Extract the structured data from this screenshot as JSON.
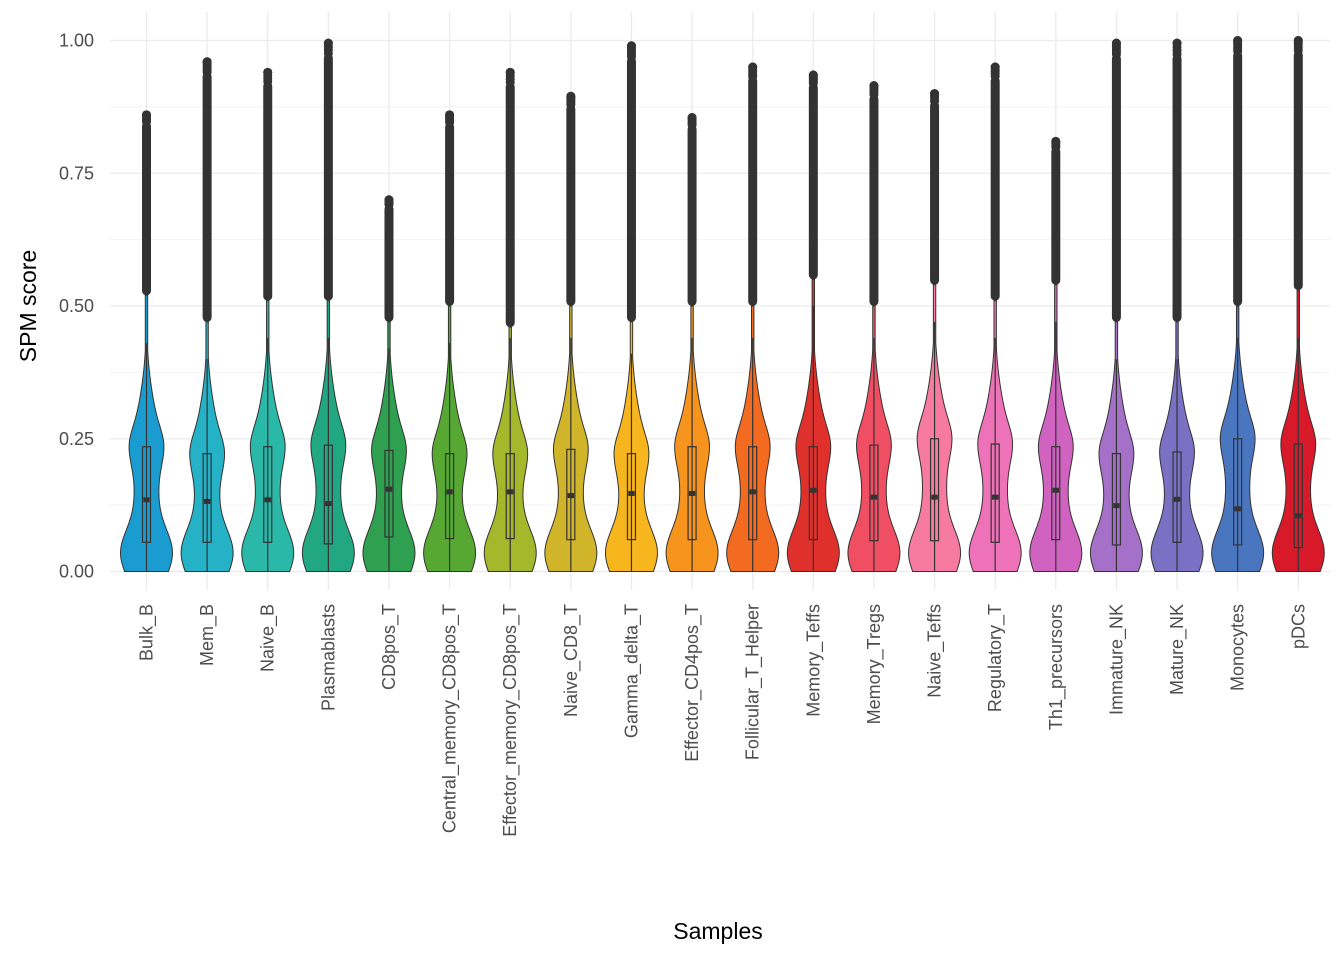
{
  "chart_data": {
    "type": "violin",
    "title": "",
    "xlabel": "Samples",
    "ylabel": "SPM score",
    "ylim": [
      -0.025,
      1.04
    ],
    "y_ticks": [
      0.0,
      0.25,
      0.5,
      0.75,
      1.0
    ],
    "y_tick_labels": [
      "0.00",
      "0.25",
      "0.50",
      "0.75",
      "1.00"
    ],
    "grid": true,
    "legend": "none",
    "categories": [
      "Bulk_B",
      "Mem_B",
      "Naive_B",
      "Plasmablasts",
      "CD8pos_T",
      "Central_memory_CD8pos_T",
      "Effector_memory_CD8pos_T",
      "Naive_CD8_T",
      "Gamma_delta_T",
      "Effector_CD4pos_T",
      "Follicular_T_Helper",
      "Memory_Teffs",
      "Memory_Tregs",
      "Naive_Teffs",
      "Regulatory_T",
      "Th1_precursors",
      "Immature_NK",
      "Mature_NK",
      "Monocytes",
      "pDCs"
    ],
    "colors": [
      "#1B9CD0",
      "#25B1C6",
      "#2AB8A8",
      "#21A882",
      "#2EA050",
      "#56A832",
      "#A3B82B",
      "#D0B42A",
      "#F7B51E",
      "#F7941D",
      "#F26B21",
      "#E0302B",
      "#F04E63",
      "#F77BA0",
      "#EE72B8",
      "#D163C0",
      "#A570C8",
      "#7C70C4",
      "#4A76C0",
      "#D7192A"
    ],
    "series": [
      {
        "name": "Bulk_B",
        "median": 0.135,
        "q1": 0.055,
        "q3": 0.235,
        "whisker_high": 0.43,
        "max": 0.86,
        "outlier_start": 0.52
      },
      {
        "name": "Mem_B",
        "median": 0.132,
        "q1": 0.055,
        "q3": 0.222,
        "whisker_high": 0.4,
        "max": 0.96,
        "outlier_start": 0.47
      },
      {
        "name": "Naive_B",
        "median": 0.135,
        "q1": 0.055,
        "q3": 0.235,
        "whisker_high": 0.44,
        "max": 0.94,
        "outlier_start": 0.51
      },
      {
        "name": "Plasmablasts",
        "median": 0.128,
        "q1": 0.052,
        "q3": 0.238,
        "whisker_high": 0.44,
        "max": 0.995,
        "outlier_start": 0.51
      },
      {
        "name": "CD8pos_T",
        "median": 0.155,
        "q1": 0.065,
        "q3": 0.228,
        "whisker_high": 0.42,
        "max": 0.7,
        "outlier_start": 0.47
      },
      {
        "name": "Central_memory_CD8pos_T",
        "median": 0.15,
        "q1": 0.062,
        "q3": 0.222,
        "whisker_high": 0.43,
        "max": 0.86,
        "outlier_start": 0.5
      },
      {
        "name": "Effector_memory_CD8pos_T",
        "median": 0.15,
        "q1": 0.062,
        "q3": 0.222,
        "whisker_high": 0.44,
        "max": 0.94,
        "outlier_start": 0.46
      },
      {
        "name": "Naive_CD8_T",
        "median": 0.143,
        "q1": 0.06,
        "q3": 0.23,
        "whisker_high": 0.44,
        "max": 0.895,
        "outlier_start": 0.5
      },
      {
        "name": "Gamma_delta_T",
        "median": 0.147,
        "q1": 0.06,
        "q3": 0.222,
        "whisker_high": 0.41,
        "max": 0.99,
        "outlier_start": 0.47
      },
      {
        "name": "Effector_CD4pos_T",
        "median": 0.147,
        "q1": 0.06,
        "q3": 0.235,
        "whisker_high": 0.44,
        "max": 0.855,
        "outlier_start": 0.5
      },
      {
        "name": "Follicular_T_Helper",
        "median": 0.15,
        "q1": 0.06,
        "q3": 0.235,
        "whisker_high": 0.44,
        "max": 0.95,
        "outlier_start": 0.5
      },
      {
        "name": "Memory_Teffs",
        "median": 0.153,
        "q1": 0.06,
        "q3": 0.235,
        "whisker_high": 0.5,
        "max": 0.935,
        "outlier_start": 0.55
      },
      {
        "name": "Memory_Tregs",
        "median": 0.14,
        "q1": 0.058,
        "q3": 0.238,
        "whisker_high": 0.44,
        "max": 0.915,
        "outlier_start": 0.5
      },
      {
        "name": "Naive_Teffs",
        "median": 0.14,
        "q1": 0.058,
        "q3": 0.25,
        "whisker_high": 0.47,
        "max": 0.9,
        "outlier_start": 0.54
      },
      {
        "name": "Regulatory_T",
        "median": 0.14,
        "q1": 0.055,
        "q3": 0.24,
        "whisker_high": 0.44,
        "max": 0.95,
        "outlier_start": 0.51
      },
      {
        "name": "Th1_precursors",
        "median": 0.153,
        "q1": 0.06,
        "q3": 0.235,
        "whisker_high": 0.47,
        "max": 0.81,
        "outlier_start": 0.54
      },
      {
        "name": "Immature_NK",
        "median": 0.124,
        "q1": 0.05,
        "q3": 0.222,
        "whisker_high": 0.4,
        "max": 0.995,
        "outlier_start": 0.47
      },
      {
        "name": "Mature_NK",
        "median": 0.136,
        "q1": 0.055,
        "q3": 0.225,
        "whisker_high": 0.4,
        "max": 0.995,
        "outlier_start": 0.47
      },
      {
        "name": "Monocytes",
        "median": 0.118,
        "q1": 0.05,
        "q3": 0.25,
        "whisker_high": 0.44,
        "max": 1.0,
        "outlier_start": 0.5
      },
      {
        "name": "pDCs",
        "median": 0.105,
        "q1": 0.045,
        "q3": 0.24,
        "whisker_high": 0.44,
        "max": 1.0,
        "outlier_start": 0.53
      }
    ]
  }
}
